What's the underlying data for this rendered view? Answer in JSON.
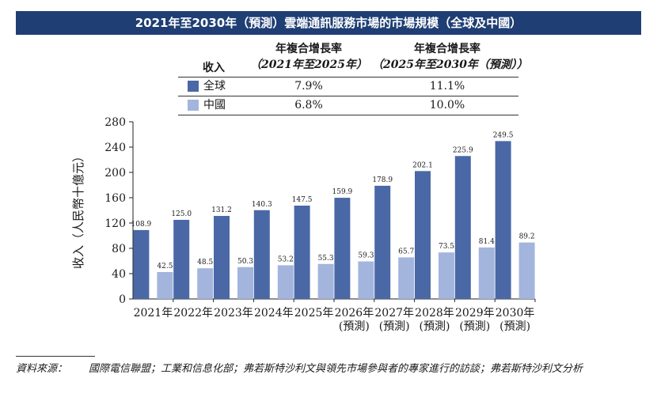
{
  "title": "2021年至2030年（預測）雲端通訊服務市場的市場規模（全球及中國）",
  "cagr_table": {
    "col0": "收入",
    "col1_line1": "年複合增長率",
    "col1_line2": "（2021年至2025年）",
    "col2_line1": "年複合增長率",
    "col2_line2": "（2025年至2030年（預測））",
    "rows": [
      {
        "name": "全球",
        "v1": "7.9%",
        "v2": "11.1%",
        "color": "#4a68a6"
      },
      {
        "name": "中國",
        "v1": "6.8%",
        "v2": "10.0%",
        "color": "#a3b5dd"
      }
    ]
  },
  "chart_data": {
    "type": "bar",
    "ylabel": "收入（人民幣十億元）",
    "ylim": [
      0,
      280
    ],
    "yticks": [
      0,
      40,
      80,
      120,
      160,
      200,
      240,
      280
    ],
    "categories": [
      [
        "2021年"
      ],
      [
        "2022年"
      ],
      [
        "2023年"
      ],
      [
        "2024年"
      ],
      [
        "2025年"
      ],
      [
        "2026年",
        "(預測)"
      ],
      [
        "2027年",
        "(預測)"
      ],
      [
        "2028年",
        "(預測)"
      ],
      [
        "2029年",
        "(預測)"
      ],
      [
        "2030年",
        "(預測)"
      ]
    ],
    "series": [
      {
        "name": "全球",
        "color": "#4a68a6",
        "values": [
          108.9,
          125.0,
          131.2,
          140.3,
          147.5,
          159.9,
          178.9,
          202.1,
          225.9,
          249.5
        ],
        "labels": [
          "108.9",
          "125.0",
          "131.2",
          "140.3",
          "147.5",
          "159.9",
          "178.9",
          "202.1",
          "225.9",
          "249.5"
        ]
      },
      {
        "name": "中國",
        "color": "#a3b5dd",
        "values": [
          42.5,
          48.5,
          50.3,
          53.2,
          55.3,
          59.3,
          65.7,
          73.5,
          81.4,
          89.2
        ],
        "labels": [
          "42.5",
          "48.5",
          "50.3",
          "53.2",
          "55.3",
          "59.3",
          "65.7",
          "73.5",
          "81.4",
          "89.2"
        ]
      }
    ],
    "grid": false,
    "legend": "table-top"
  },
  "source": {
    "label": "資料來源：",
    "text": "國際電信聯盟；工業和信息化部；弗若斯特沙利文與領先市場參與者的專家進行的訪談；弗若斯特沙利文分析"
  }
}
